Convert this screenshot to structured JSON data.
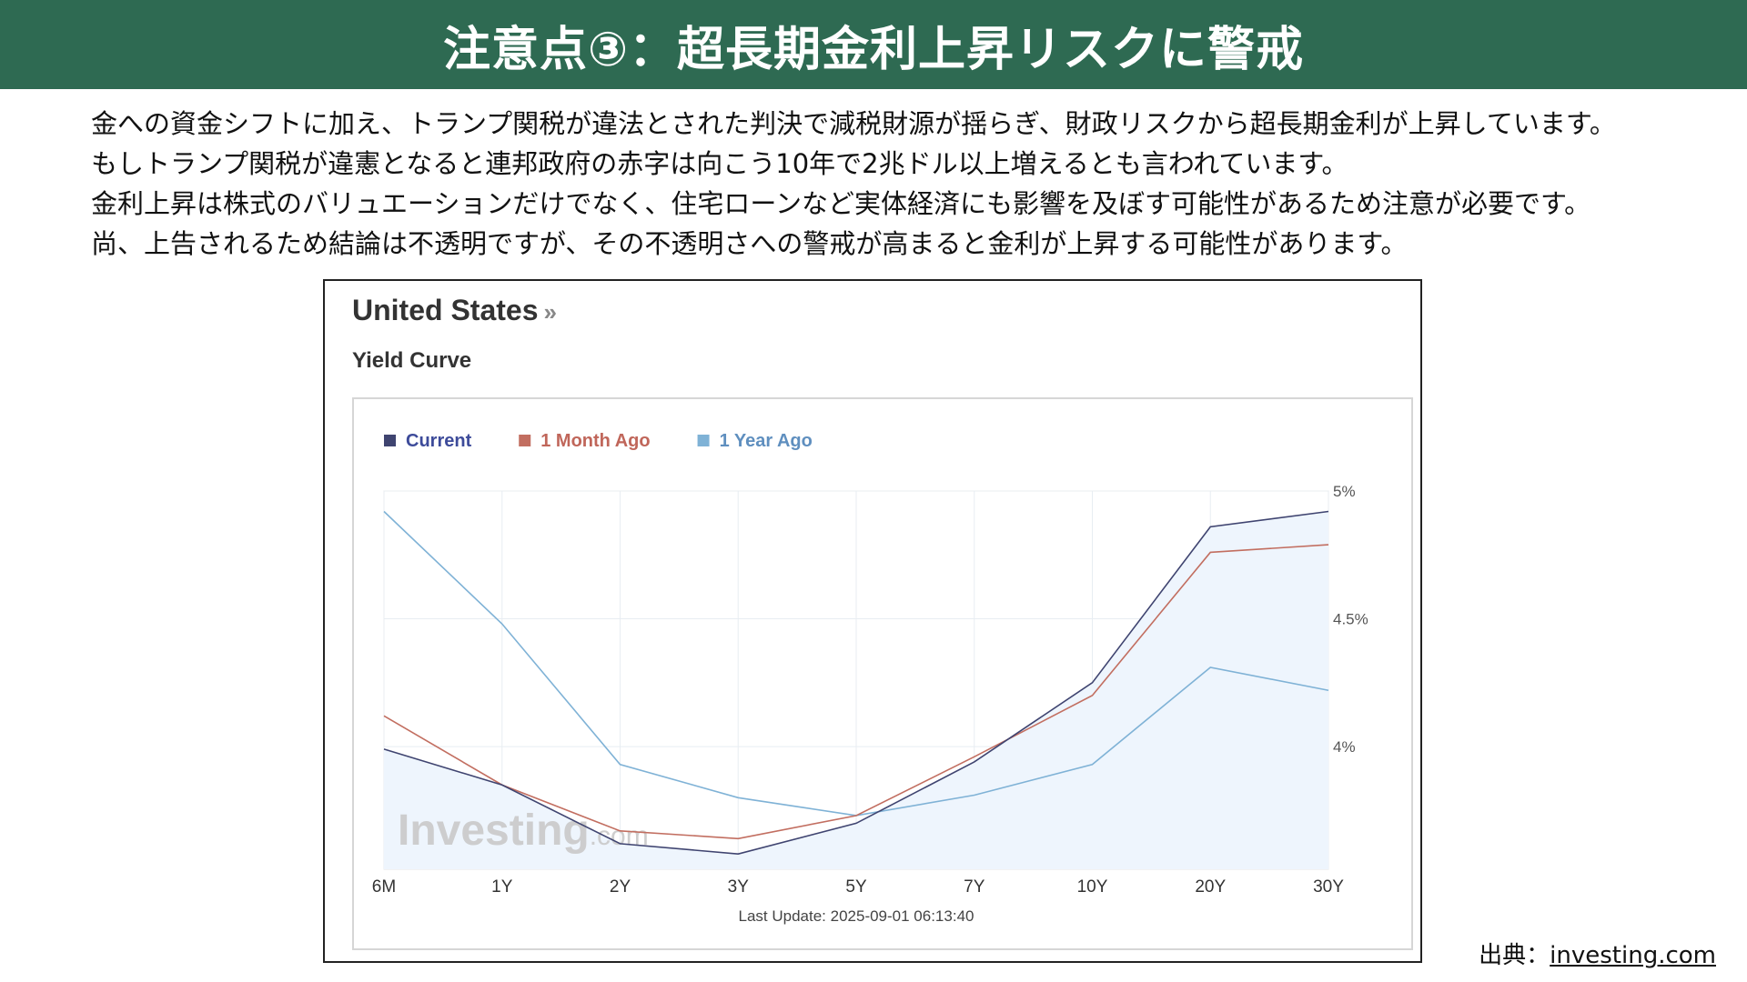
{
  "header": {
    "title": "注意点③：超長期金利上昇リスクに警戒"
  },
  "body_lines": [
    "金への資金シフトに加え、トランプ関税が違法とされた判決で減税財源が揺らぎ、財政リスクから超長期金利が上昇しています。",
    "もしトランプ関税が違憲となると連邦政府の赤字は向こう10年で2兆ドル以上増えるとも言われています。",
    "金利上昇は株式のバリュエーションだけでなく、住宅ローンなど実体経済にも影響を及ぼす可能性があるため注意が必要です。",
    "尚、上告されるため結論は不透明ですが、その不透明さへの警戒が高まると金利が上昇する可能性があります。"
  ],
  "chart_header": {
    "country": "United States",
    "country_suffix": "»",
    "subtitle": "Yield Curve"
  },
  "watermark": {
    "brand": "Investing",
    "suffix": ".com"
  },
  "source": {
    "label": "出典：",
    "link_text": "investing.com"
  },
  "chart_data": {
    "type": "line",
    "title": "Yield Curve",
    "categories": [
      "6M",
      "1Y",
      "2Y",
      "3Y",
      "5Y",
      "7Y",
      "10Y",
      "20Y",
      "30Y"
    ],
    "y_ticks": [
      "5%",
      "4.5%",
      "4%"
    ],
    "y_tick_values": [
      5.0,
      4.5,
      4.0
    ],
    "ylim": [
      3.52,
      5.0
    ],
    "y_axis_side": "right",
    "grid": true,
    "legend_position": "top-left",
    "footer": "Last Update: 2025-09-01 06:13:40",
    "series": [
      {
        "name": "Current",
        "color": "#3f4470",
        "area": true,
        "area_color": "#eef5fd",
        "values": [
          3.99,
          3.85,
          3.62,
          3.58,
          3.7,
          3.94,
          4.25,
          4.86,
          4.92
        ]
      },
      {
        "name": "1 Month Ago",
        "color": "#c26e60",
        "area": false,
        "values": [
          4.12,
          3.85,
          3.67,
          3.64,
          3.73,
          3.96,
          4.2,
          4.76,
          4.79
        ]
      },
      {
        "name": "1 Year Ago",
        "color": "#7fb2d6",
        "area": false,
        "values": [
          4.92,
          4.48,
          3.93,
          3.8,
          3.73,
          3.81,
          3.93,
          4.31,
          4.22
        ]
      }
    ]
  }
}
